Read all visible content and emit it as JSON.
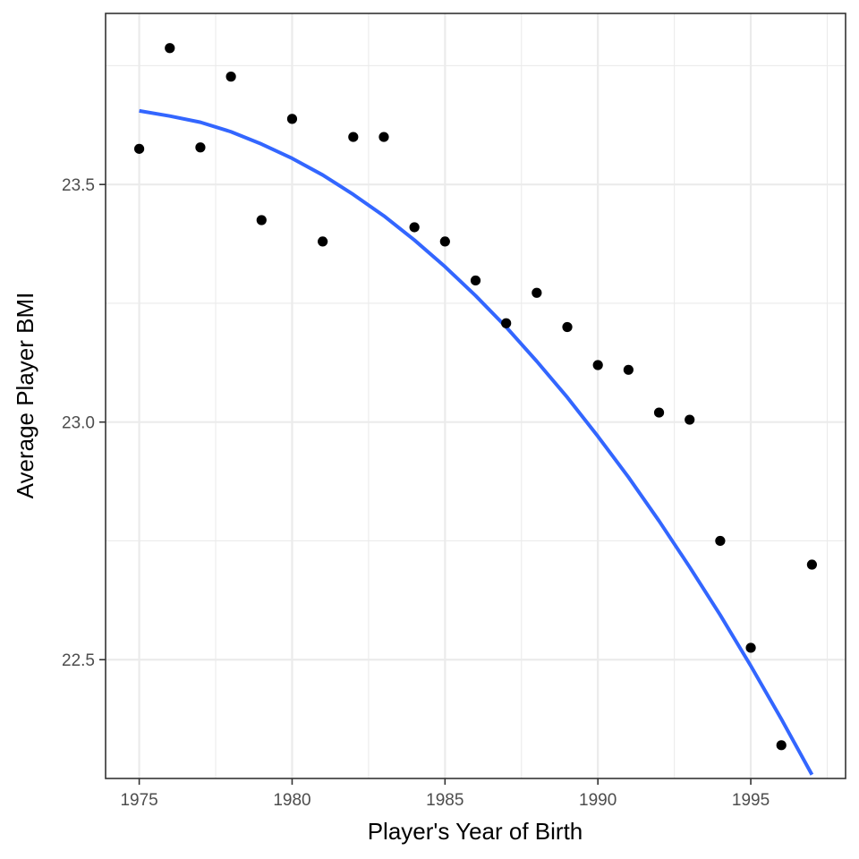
{
  "chart_data": {
    "type": "scatter",
    "title": "",
    "xlabel": "Player's Year of Birth",
    "ylabel": "Average Player BMI",
    "xlim": [
      1973.9,
      1998.1
    ],
    "ylim": [
      22.25,
      23.86
    ],
    "x_ticks": [
      1975,
      1980,
      1985,
      1990,
      1995
    ],
    "x_tick_labels": [
      "1975",
      "1980",
      "1985",
      "1990",
      "1995"
    ],
    "x_minor_ticks": [
      1977.5,
      1982.5,
      1987.5,
      1992.5,
      1997.5
    ],
    "y_ticks": [
      22.5,
      23.0,
      23.5
    ],
    "y_tick_labels": [
      "22.5",
      "23.0",
      "23.5"
    ],
    "y_minor_ticks": [
      22.75,
      23.25,
      23.75
    ],
    "grid": true,
    "legend": "none",
    "series": [
      {
        "name": "points",
        "x": [
          1975,
          1976,
          1977,
          1978,
          1979,
          1980,
          1981,
          1982,
          1983,
          1984,
          1985,
          1986,
          1987,
          1988,
          1989,
          1990,
          1991,
          1992,
          1993,
          1994,
          1995,
          1996,
          1997
        ],
        "y": [
          23.575,
          23.787,
          23.578,
          23.727,
          23.425,
          23.638,
          23.38,
          23.6,
          23.6,
          23.41,
          23.38,
          23.298,
          23.208,
          23.272,
          23.2,
          23.12,
          23.11,
          23.02,
          23.005,
          22.75,
          22.525,
          22.32,
          22.7
        ]
      }
    ],
    "trend_line": {
      "name": "quadratic fit",
      "method": "quadratic",
      "color": "#3366FF",
      "x": [
        1975,
        1976,
        1977,
        1978,
        1979,
        1980,
        1981,
        1982,
        1983,
        1984,
        1985,
        1986,
        1987,
        1988,
        1989,
        1990,
        1991,
        1992,
        1993,
        1994,
        1995,
        1996,
        1997
      ],
      "y": [
        23.655,
        23.644,
        23.631,
        23.611,
        23.585,
        23.555,
        23.52,
        23.479,
        23.434,
        23.383,
        23.327,
        23.266,
        23.2,
        23.128,
        23.052,
        22.97,
        22.884,
        22.792,
        22.695,
        22.594,
        22.487,
        22.375,
        22.258
      ]
    },
    "point_color": "#000000",
    "grid_color": "#ebebeb",
    "panel_border_color": "#333333"
  }
}
